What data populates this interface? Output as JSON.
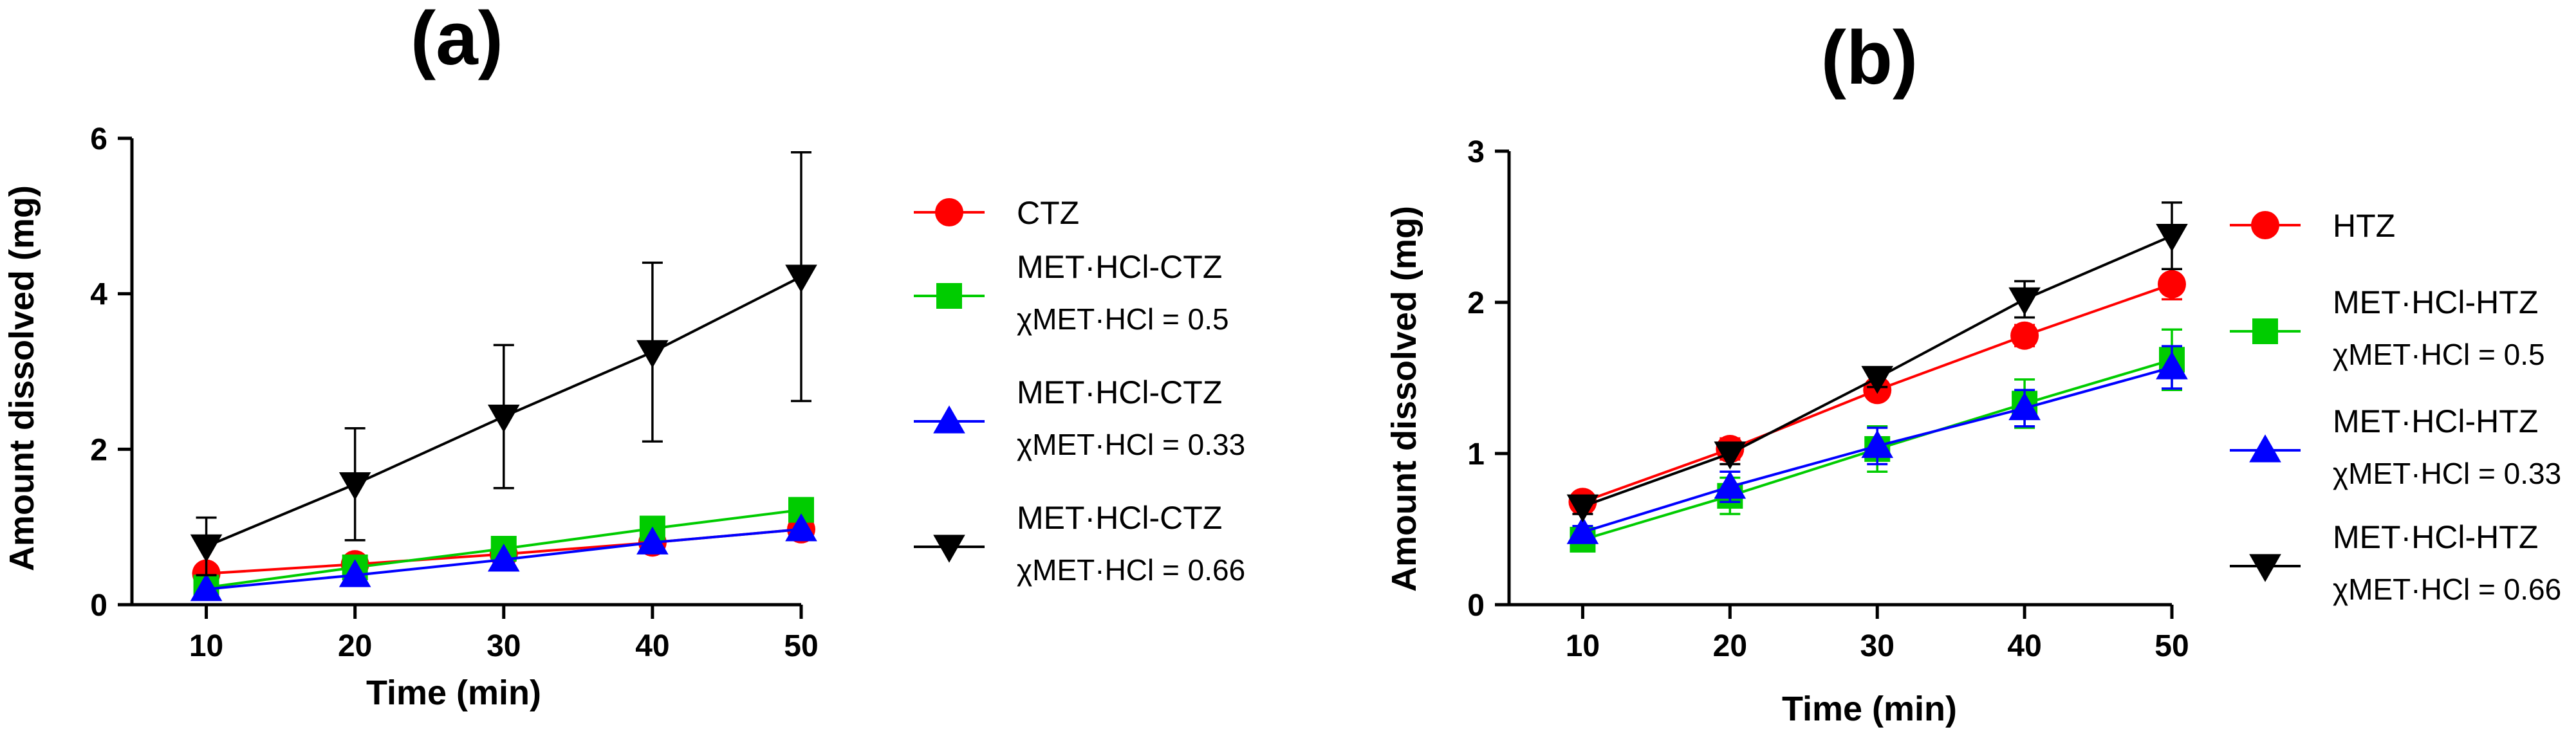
{
  "chart_data": [
    {
      "panel_label": "(a)",
      "type": "line",
      "xlabel": "Time (min)",
      "ylabel": "Amount dissolved (mg)",
      "x": [
        10,
        20,
        30,
        40,
        50
      ],
      "xlim": [
        5,
        50
      ],
      "ylim": [
        0,
        6
      ],
      "xticks": [
        "10",
        "20",
        "30",
        "40",
        "50"
      ],
      "yticks": [
        "0",
        "2",
        "4",
        "6"
      ],
      "ytick_values": [
        0,
        2,
        4,
        6
      ],
      "series": [
        {
          "name": "CTZ",
          "subscript_label": "",
          "color": "#ff0000",
          "marker": "circle",
          "values": [
            0.4,
            0.52,
            0.65,
            0.8,
            0.97
          ],
          "errors": [
            0,
            0,
            0,
            0,
            0
          ]
        },
        {
          "name": "MET·HCl-CTZ",
          "subscript_label": "χMET·HCl = 0.5",
          "color": "#00cc00",
          "marker": "square",
          "values": [
            0.22,
            0.48,
            0.72,
            0.98,
            1.22
          ],
          "errors": [
            0,
            0,
            0,
            0.1,
            0.15
          ]
        },
        {
          "name": "MET·HCl-CTZ",
          "subscript_label": "χMET·HCl = 0.33",
          "color": "#0000ff",
          "marker": "triangle-up",
          "values": [
            0.2,
            0.38,
            0.58,
            0.8,
            0.97
          ],
          "errors": [
            0,
            0,
            0,
            0,
            0
          ]
        },
        {
          "name": "MET·HCl-CTZ",
          "subscript_label": "χMET·HCl = 0.66",
          "color": "#000000",
          "marker": "triangle-down",
          "values": [
            0.75,
            1.55,
            2.42,
            3.25,
            4.22
          ],
          "errors": [
            0.37,
            0.72,
            0.92,
            1.15,
            1.6
          ]
        }
      ]
    },
    {
      "panel_label": "(b)",
      "type": "line",
      "xlabel": "Time (min)",
      "ylabel": "Amount dissolved (mg)",
      "x": [
        10,
        20,
        30,
        40,
        50
      ],
      "xlim": [
        5,
        50
      ],
      "ylim": [
        0,
        3
      ],
      "xticks": [
        "10",
        "20",
        "30",
        "40",
        "50"
      ],
      "yticks": [
        "0",
        "1",
        "2",
        "3"
      ],
      "ytick_values": [
        0,
        1,
        2,
        3
      ],
      "series": [
        {
          "name": "HTZ",
          "subscript_label": "",
          "color": "#ff0000",
          "marker": "circle",
          "values": [
            0.68,
            1.03,
            1.42,
            1.78,
            2.12
          ],
          "errors": [
            0.04,
            0.07,
            0.05,
            0.07,
            0.1
          ]
        },
        {
          "name": "MET·HCl-HTZ",
          "subscript_label": "χMET·HCl = 0.5",
          "color": "#00cc00",
          "marker": "square",
          "values": [
            0.43,
            0.72,
            1.03,
            1.33,
            1.62
          ],
          "errors": [
            0.06,
            0.12,
            0.15,
            0.16,
            0.2
          ]
        },
        {
          "name": "MET·HCl-HTZ",
          "subscript_label": "χMET·HCl = 0.33",
          "color": "#0000ff",
          "marker": "triangle-up",
          "values": [
            0.48,
            0.78,
            1.05,
            1.3,
            1.57
          ],
          "errors": [
            0.04,
            0.1,
            0.12,
            0.12,
            0.14
          ]
        },
        {
          "name": "MET·HCl-HTZ",
          "subscript_label": "χMET·HCl = 0.66",
          "color": "#000000",
          "marker": "triangle-down",
          "values": [
            0.65,
            1.0,
            1.5,
            2.02,
            2.44
          ],
          "errors": [
            0.05,
            0.07,
            0.06,
            0.12,
            0.22
          ]
        }
      ]
    }
  ]
}
